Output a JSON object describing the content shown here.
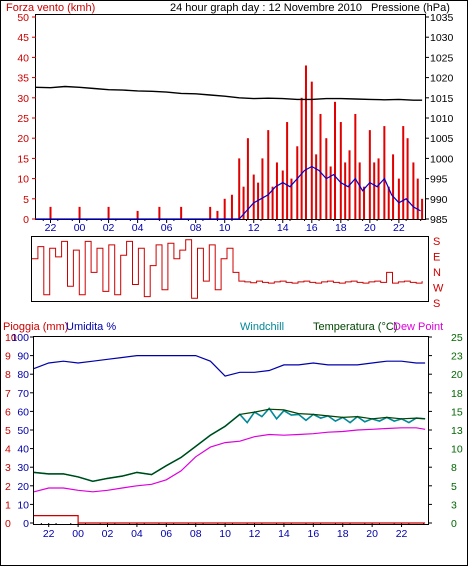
{
  "header": {
    "title": "24 hour graph day : 12 Novembre 2010",
    "left_label": "Forza vento (kmh)",
    "right_label": "Pressione (hPa)"
  },
  "colors": {
    "wind_gust": "#e00000",
    "wind_avg": "#0000cc",
    "pressure": "#000000",
    "direction": "#cc0000",
    "rain": "#cc0000",
    "humidity": "#0000aa",
    "windchill": "#008899",
    "temperature": "#004400",
    "dewpoint": "#dd00dd",
    "axis_left": "#cc0000",
    "axis_right": "#000000",
    "axis_time": "#0000aa",
    "axis_temp": "#006600"
  },
  "chart_data": [
    {
      "id": "wind",
      "type": "line",
      "x_ticks": [
        "22",
        "00",
        "02",
        "04",
        "06",
        "08",
        "10",
        "12",
        "14",
        "16",
        "18",
        "20",
        "22"
      ],
      "left_axis": {
        "label": "Forza vento (kmh)",
        "ticks": [
          0,
          5,
          10,
          15,
          20,
          25,
          30,
          35,
          40,
          45,
          50
        ],
        "ylim": [
          0,
          50
        ]
      },
      "right_axis": {
        "label": "Pressione (hPa)",
        "ticks": [
          985,
          990,
          995,
          1000,
          1005,
          1010,
          1015,
          1020,
          1025,
          1030,
          1035
        ],
        "ylim": [
          985,
          1035
        ]
      },
      "grid": false,
      "series": [
        {
          "key": "gust",
          "style": "bars",
          "x": [
            22,
            24,
            26,
            28,
            29.5,
            31,
            33,
            33.5,
            34,
            34.5,
            35,
            35.3,
            35.6,
            36,
            36.3,
            36.6,
            37,
            37.3,
            37.6,
            38,
            38.3,
            38.6,
            39,
            39.3,
            39.6,
            40,
            40.3,
            40.6,
            41,
            41.3,
            41.6,
            42,
            42.3,
            42.6,
            43,
            43.3,
            43.6,
            44,
            44.3,
            44.6,
            45,
            45.3,
            45.6,
            46,
            46.3,
            46.6,
            47,
            47.3,
            47.6
          ],
          "values": [
            3,
            3,
            3,
            2,
            3,
            3,
            3,
            2,
            5,
            6,
            15,
            8,
            20,
            11,
            9,
            15,
            22,
            8,
            14,
            12,
            24,
            10,
            18,
            30,
            38,
            34,
            16,
            26,
            20,
            13,
            29,
            24,
            14,
            17,
            26,
            14,
            8,
            22,
            14,
            15,
            23,
            8,
            16,
            10,
            23,
            20,
            14,
            10,
            5
          ]
        },
        {
          "key": "avg",
          "style": "line",
          "x": [
            21,
            24,
            27,
            30,
            32,
            33,
            34,
            35,
            35.5,
            36,
            36.5,
            37,
            37.5,
            38,
            38.5,
            39,
            39.5,
            40,
            40.5,
            41,
            41.5,
            42,
            42.5,
            43,
            43.5,
            44,
            44.5,
            45,
            45.5,
            46,
            46.5,
            47,
            47.5
          ],
          "values": [
            0,
            0,
            0,
            0,
            0,
            0,
            0,
            0,
            2,
            4,
            5,
            6,
            8,
            9,
            8,
            10,
            12,
            13,
            12,
            10,
            11,
            9,
            8,
            10,
            7,
            9,
            8,
            10,
            6,
            4,
            5,
            3,
            2
          ]
        },
        {
          "key": "pressure",
          "axis": "right",
          "style": "line",
          "x": [
            21,
            22,
            23,
            24,
            25,
            26,
            27,
            28,
            29,
            30,
            31,
            32,
            33,
            34,
            35,
            36,
            37,
            38,
            39,
            40,
            41,
            42,
            43,
            44,
            45,
            46,
            47,
            47.6
          ],
          "values": [
            1017.6,
            1017.5,
            1017.8,
            1017.6,
            1017.3,
            1017.0,
            1016.9,
            1016.7,
            1016.6,
            1016.4,
            1016.1,
            1016.0,
            1015.7,
            1015.4,
            1015.0,
            1014.8,
            1014.9,
            1014.8,
            1014.6,
            1014.6,
            1014.8,
            1014.8,
            1014.7,
            1014.6,
            1014.5,
            1014.6,
            1014.4,
            1014.4
          ]
        }
      ]
    },
    {
      "id": "direction",
      "type": "line",
      "right_axis": {
        "ticks": [
          "S",
          "E",
          "N",
          "W",
          "S"
        ]
      },
      "ylim": [
        0,
        360
      ],
      "series": [
        {
          "key": "dir",
          "x": [
            21,
            21.4,
            21.8,
            22.2,
            22.6,
            23,
            23.4,
            23.8,
            24.2,
            24.6,
            25,
            25.4,
            25.8,
            26.2,
            26.6,
            27,
            27.4,
            27.8,
            28.2,
            28.6,
            29,
            29.4,
            29.8,
            30.2,
            30.6,
            31,
            31.4,
            31.8,
            32.2,
            32.6,
            33,
            33.4,
            33.8,
            34.2,
            34.6,
            35,
            35.4,
            35.8,
            36.2,
            36.6,
            37,
            37.4,
            37.8,
            38.2,
            38.6,
            39,
            39.4,
            39.8,
            40.2,
            40.6,
            41,
            41.4,
            41.8,
            42.2,
            42.6,
            43,
            43.4,
            43.8,
            44.2,
            44.6,
            45,
            45.4,
            45.8,
            46.2,
            46.6,
            47,
            47.4
          ],
          "values": [
            120,
            50,
            330,
            60,
            110,
            20,
            280,
            70,
            330,
            20,
            200,
            60,
            310,
            40,
            330,
            100,
            20,
            270,
            60,
            340,
            160,
            40,
            300,
            30,
            120,
            70,
            10,
            350,
            60,
            250,
            40,
            300,
            120,
            60,
            200,
            250,
            255,
            260,
            250,
            258,
            262,
            255,
            250,
            258,
            262,
            255,
            250,
            258,
            262,
            255,
            250,
            258,
            262,
            255,
            250,
            258,
            262,
            255,
            250,
            258,
            200,
            262,
            255,
            250,
            258,
            262,
            250
          ]
        }
      ]
    },
    {
      "id": "weather",
      "type": "line",
      "header_labels": {
        "rain": "Pioggia (mm)",
        "humidity": "Umidita %",
        "windchill": "Windchill",
        "temperature": "Temperatura (°C)",
        "dewpoint": "Dew Point"
      },
      "x_ticks": [
        "22",
        "00",
        "02",
        "04",
        "06",
        "08",
        "10",
        "12",
        "14",
        "16",
        "18",
        "20",
        "22"
      ],
      "axis_rain": {
        "ticks": [
          0,
          1,
          2,
          3,
          4,
          5,
          6,
          7,
          8,
          9,
          10
        ],
        "ylim": [
          0,
          10
        ]
      },
      "axis_humidity": {
        "ticks": [
          0,
          10,
          20,
          30,
          40,
          50,
          60,
          70,
          80,
          90,
          100
        ],
        "ylim": [
          0,
          100
        ]
      },
      "axis_temp": {
        "ticks": [
          0,
          3,
          5,
          8,
          10,
          13,
          15,
          18,
          20,
          23,
          25
        ],
        "ylim": [
          0,
          25
        ]
      },
      "grid": false,
      "series": [
        {
          "key": "rain",
          "axis": "rain",
          "x": [
            21,
            24,
            24,
            47.6
          ],
          "values": [
            0.4,
            0.4,
            0,
            0
          ]
        },
        {
          "key": "humidity",
          "axis": "humidity",
          "x": [
            21,
            22,
            23,
            24,
            25,
            26,
            27,
            28,
            29,
            30,
            31,
            32,
            33,
            34,
            35,
            36,
            37,
            38,
            39,
            40,
            41,
            42,
            43,
            44,
            45,
            46,
            47,
            47.6
          ],
          "values": [
            83,
            86,
            87,
            86,
            87,
            88,
            89,
            90,
            90,
            90,
            90,
            90,
            87,
            79,
            81,
            81,
            82,
            85,
            85,
            86,
            85,
            85,
            85,
            86,
            87,
            87,
            86,
            86
          ]
        },
        {
          "key": "windchill",
          "axis": "temp",
          "x": [
            21,
            22,
            23,
            24,
            25,
            26,
            27,
            28,
            29,
            30,
            31,
            32,
            33,
            34,
            35,
            35.5,
            36,
            36.5,
            37,
            37.5,
            38,
            38.5,
            39,
            39.5,
            40,
            40.5,
            41,
            41.5,
            42,
            42.5,
            43,
            43.5,
            44,
            44.5,
            45,
            45.5,
            46,
            46.5,
            47,
            47.6
          ],
          "values": [
            6.8,
            6.6,
            6.6,
            6.2,
            5.6,
            6.0,
            6.3,
            6.8,
            6.5,
            7.7,
            8.8,
            10.3,
            11.8,
            13.0,
            14.6,
            13.5,
            14.9,
            14.3,
            15.4,
            14.0,
            15.1,
            14.5,
            14.6,
            13.8,
            14.6,
            14.1,
            14.4,
            13.7,
            14.2,
            13.5,
            14.3,
            13.6,
            14.0,
            13.7,
            14.2,
            13.7,
            14.0,
            13.5,
            14.1,
            14.0
          ]
        },
        {
          "key": "temperature",
          "axis": "temp",
          "x": [
            21,
            22,
            23,
            24,
            25,
            26,
            27,
            28,
            29,
            30,
            31,
            32,
            33,
            34,
            35,
            36,
            37,
            38,
            39,
            40,
            41,
            42,
            43,
            44,
            45,
            46,
            47,
            47.6
          ],
          "values": [
            6.8,
            6.6,
            6.6,
            6.2,
            5.6,
            6.0,
            6.3,
            6.8,
            6.5,
            7.7,
            8.8,
            10.3,
            11.8,
            13.0,
            14.6,
            14.9,
            15.3,
            15.2,
            14.7,
            14.6,
            14.4,
            14.2,
            14.3,
            14.0,
            14.2,
            14.0,
            14.1,
            14.0
          ]
        },
        {
          "key": "dewpoint",
          "axis": "temp",
          "x": [
            21,
            22,
            23,
            24,
            25,
            26,
            27,
            28,
            29,
            30,
            31,
            32,
            33,
            34,
            35,
            36,
            37,
            38,
            39,
            40,
            41,
            42,
            43,
            44,
            45,
            46,
            47,
            47.6
          ],
          "values": [
            4.2,
            4.7,
            4.7,
            4.4,
            4.2,
            4.4,
            4.7,
            5.0,
            5.2,
            5.8,
            7.0,
            8.9,
            10.2,
            10.8,
            11.0,
            11.6,
            11.9,
            11.8,
            11.9,
            12.0,
            12.2,
            12.3,
            12.5,
            12.6,
            12.7,
            12.8,
            12.8,
            12.6
          ]
        }
      ]
    }
  ]
}
